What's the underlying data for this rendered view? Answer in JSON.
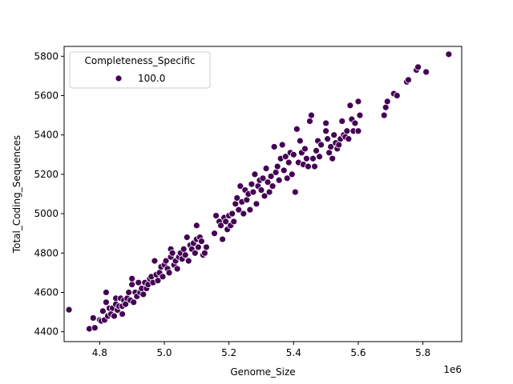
{
  "chart_data": {
    "type": "scatter",
    "xlabel": "Genome_Size",
    "ylabel": "Total_Coding_Sequences",
    "x_offset_label": "1e6",
    "xlim": [
      4.69,
      5.92
    ],
    "ylim": [
      4350,
      5850
    ],
    "x_unit_multiplier": 1000000,
    "xticks": [
      4.8,
      5.0,
      5.2,
      5.4,
      5.6,
      5.8
    ],
    "xtick_labels": [
      "4.8",
      "5.0",
      "5.2",
      "5.4",
      "5.6",
      "5.8"
    ],
    "yticks": [
      4400,
      4600,
      4800,
      5000,
      5200,
      5400,
      5600,
      5800
    ],
    "ytick_labels": [
      "4400",
      "4600",
      "4800",
      "5000",
      "5200",
      "5400",
      "5600",
      "5800"
    ],
    "grid": false,
    "legend": {
      "placement": "top-left",
      "title": "Completeness_Specific",
      "entries": [
        {
          "label": "100.0",
          "color": "#440154"
        }
      ]
    },
    "series": [
      {
        "name": "100.0",
        "color": "#440154",
        "points": [
          [
            4.705,
            4512
          ],
          [
            4.768,
            4415
          ],
          [
            4.78,
            4470
          ],
          [
            4.785,
            4420
          ],
          [
            4.8,
            4460
          ],
          [
            4.805,
            4455
          ],
          [
            4.81,
            4505
          ],
          [
            4.815,
            4460
          ],
          [
            4.82,
            4550
          ],
          [
            4.82,
            4600
          ],
          [
            4.825,
            4480
          ],
          [
            4.83,
            4520
          ],
          [
            4.835,
            4490
          ],
          [
            4.84,
            4520
          ],
          [
            4.845,
            4480
          ],
          [
            4.85,
            4570
          ],
          [
            4.85,
            4540
          ],
          [
            4.855,
            4510
          ],
          [
            4.86,
            4530
          ],
          [
            4.865,
            4570
          ],
          [
            4.87,
            4490
          ],
          [
            4.87,
            4530
          ],
          [
            4.875,
            4560
          ],
          [
            4.88,
            4540
          ],
          [
            4.885,
            4570
          ],
          [
            4.89,
            4600
          ],
          [
            4.895,
            4560
          ],
          [
            4.9,
            4640
          ],
          [
            4.9,
            4670
          ],
          [
            4.905,
            4550
          ],
          [
            4.91,
            4600
          ],
          [
            4.915,
            4580
          ],
          [
            4.92,
            4650
          ],
          [
            4.925,
            4600
          ],
          [
            4.93,
            4620
          ],
          [
            4.935,
            4590
          ],
          [
            4.94,
            4650
          ],
          [
            4.945,
            4620
          ],
          [
            4.95,
            4640
          ],
          [
            4.955,
            4670
          ],
          [
            4.96,
            4680
          ],
          [
            4.965,
            4650
          ],
          [
            4.97,
            4760
          ],
          [
            4.975,
            4690
          ],
          [
            4.98,
            4660
          ],
          [
            4.985,
            4700
          ],
          [
            4.99,
            4730
          ],
          [
            4.995,
            4680
          ],
          [
            5.0,
            4740
          ],
          [
            5.005,
            4760
          ],
          [
            5.01,
            4720
          ],
          [
            5.015,
            4700
          ],
          [
            5.02,
            4780
          ],
          [
            5.02,
            4820
          ],
          [
            5.025,
            4800
          ],
          [
            5.03,
            4740
          ],
          [
            5.035,
            4760
          ],
          [
            5.04,
            4720
          ],
          [
            5.045,
            4780
          ],
          [
            5.05,
            4800
          ],
          [
            5.055,
            4770
          ],
          [
            5.06,
            4820
          ],
          [
            5.065,
            4790
          ],
          [
            5.07,
            4880
          ],
          [
            5.075,
            4760
          ],
          [
            5.08,
            4840
          ],
          [
            5.085,
            4820
          ],
          [
            5.09,
            4850
          ],
          [
            5.095,
            4800
          ],
          [
            5.1,
            4870
          ],
          [
            5.105,
            4830
          ],
          [
            5.11,
            4880
          ],
          [
            5.115,
            4860
          ],
          [
            5.12,
            4790
          ],
          [
            5.125,
            4800
          ],
          [
            5.13,
            4830
          ],
          [
            5.1,
            4940
          ],
          [
            5.155,
            4900
          ],
          [
            5.16,
            4990
          ],
          [
            5.17,
            4960
          ],
          [
            5.175,
            4940
          ],
          [
            5.18,
            4870
          ],
          [
            5.185,
            4980
          ],
          [
            5.19,
            4960
          ],
          [
            5.195,
            4920
          ],
          [
            5.2,
            4990
          ],
          [
            5.205,
            4940
          ],
          [
            5.21,
            5000
          ],
          [
            5.215,
            4960
          ],
          [
            5.22,
            5050
          ],
          [
            5.225,
            5080
          ],
          [
            5.23,
            5020
          ],
          [
            5.235,
            5140
          ],
          [
            5.24,
            5060
          ],
          [
            5.245,
            5000
          ],
          [
            5.25,
            5120
          ],
          [
            5.255,
            5070
          ],
          [
            5.26,
            5100
          ],
          [
            5.265,
            5020
          ],
          [
            5.27,
            5150
          ],
          [
            5.275,
            5110
          ],
          [
            5.28,
            5200
          ],
          [
            5.285,
            5050
          ],
          [
            5.29,
            5140
          ],
          [
            5.295,
            5170
          ],
          [
            5.3,
            5120
          ],
          [
            5.305,
            5180
          ],
          [
            5.31,
            5090
          ],
          [
            5.315,
            5230
          ],
          [
            5.32,
            5160
          ],
          [
            5.325,
            5110
          ],
          [
            5.33,
            5190
          ],
          [
            5.335,
            5140
          ],
          [
            5.34,
            5340
          ],
          [
            5.345,
            5210
          ],
          [
            5.35,
            5240
          ],
          [
            5.355,
            5170
          ],
          [
            5.36,
            5280
          ],
          [
            5.365,
            5350
          ],
          [
            5.37,
            5220
          ],
          [
            5.375,
            5290
          ],
          [
            5.38,
            5180
          ],
          [
            5.385,
            5260
          ],
          [
            5.39,
            5310
          ],
          [
            5.395,
            5200
          ],
          [
            5.4,
            5300
          ],
          [
            5.405,
            5110
          ],
          [
            5.41,
            5430
          ],
          [
            5.415,
            5260
          ],
          [
            5.42,
            5370
          ],
          [
            5.425,
            5310
          ],
          [
            5.43,
            5250
          ],
          [
            5.435,
            5330
          ],
          [
            5.44,
            5280
          ],
          [
            5.445,
            5240
          ],
          [
            5.45,
            5470
          ],
          [
            5.455,
            5500
          ],
          [
            5.46,
            5280
          ],
          [
            5.465,
            5240
          ],
          [
            5.47,
            5320
          ],
          [
            5.475,
            5370
          ],
          [
            5.48,
            5290
          ],
          [
            5.485,
            5350
          ],
          [
            5.5,
            5420
          ],
          [
            5.5,
            5460
          ],
          [
            5.505,
            5380
          ],
          [
            5.51,
            5310
          ],
          [
            5.515,
            5340
          ],
          [
            5.52,
            5280
          ],
          [
            5.525,
            5400
          ],
          [
            5.53,
            5360
          ],
          [
            5.535,
            5330
          ],
          [
            5.54,
            5350
          ],
          [
            5.545,
            5380
          ],
          [
            5.55,
            5470
          ],
          [
            5.555,
            5400
          ],
          [
            5.56,
            5390
          ],
          [
            5.565,
            5420
          ],
          [
            5.57,
            5380
          ],
          [
            5.575,
            5550
          ],
          [
            5.58,
            5480
          ],
          [
            5.585,
            5420
          ],
          [
            5.59,
            5460
          ],
          [
            5.6,
            5570
          ],
          [
            5.6,
            5420
          ],
          [
            5.605,
            5500
          ],
          [
            5.68,
            5500
          ],
          [
            5.685,
            5540
          ],
          [
            5.69,
            5570
          ],
          [
            5.71,
            5610
          ],
          [
            5.72,
            5600
          ],
          [
            5.75,
            5670
          ],
          [
            5.755,
            5680
          ],
          [
            5.78,
            5730
          ],
          [
            5.785,
            5745
          ],
          [
            5.81,
            5720
          ],
          [
            5.88,
            5810
          ]
        ]
      }
    ]
  }
}
